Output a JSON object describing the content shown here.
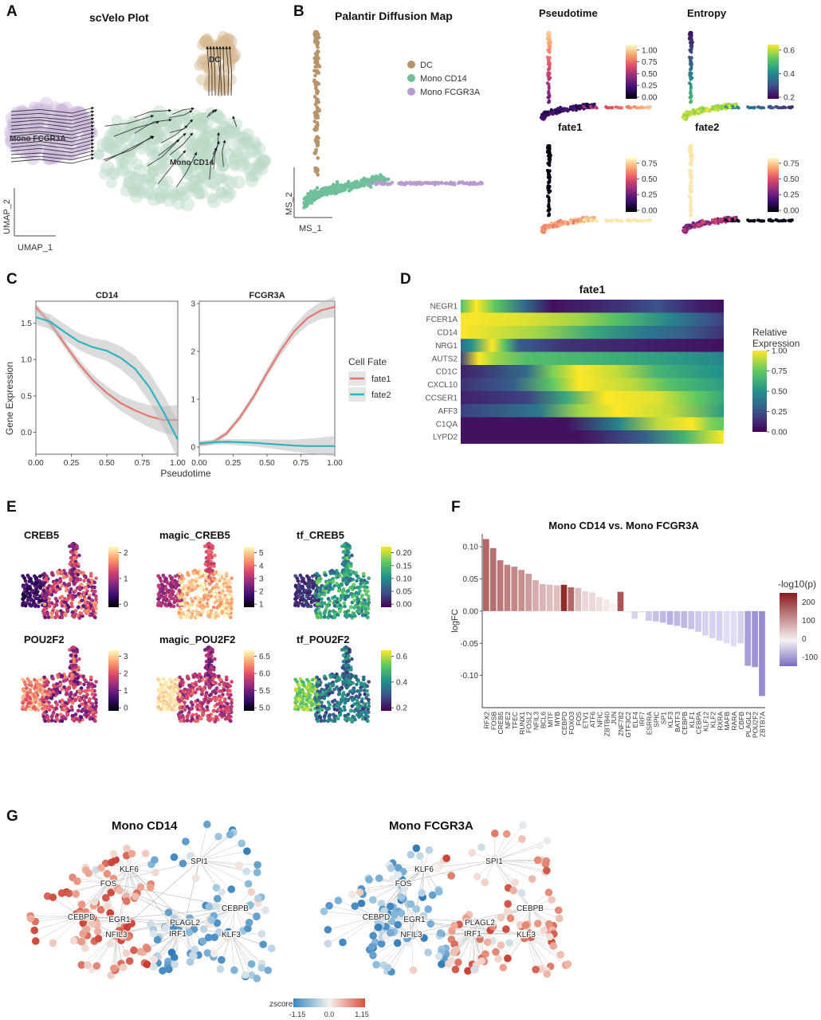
{
  "panels": {
    "A": {
      "letter": "A",
      "title": "scVelo Plot",
      "xlabel": "UMAP_1",
      "ylabel": "UMAP_2",
      "cluster_labels": [
        "DC",
        "Mono FCGR3A",
        "Mono CD14"
      ]
    },
    "B": {
      "letter": "B",
      "title": "Palantir Diffusion Map",
      "xlabel": "MS_1",
      "ylabel": "MS_2",
      "legend": [
        {
          "label": "DC",
          "color": "#b8946a"
        },
        {
          "label": "Mono CD14",
          "color": "#6fbf9a"
        },
        {
          "label": "Mono FCGR3A",
          "color": "#b59ccd"
        }
      ],
      "subplots": [
        {
          "title": "Pseudotime",
          "ticks": [
            "1.00",
            "0.75",
            "0.50",
            "0.25",
            "0.00"
          ],
          "cmap": "magma"
        },
        {
          "title": "Entropy",
          "ticks": [
            "0.6",
            "0.4",
            "0.2"
          ],
          "cmap": "viridis"
        },
        {
          "title": "fate1",
          "ticks": [
            "0.75",
            "0.50",
            "0.25",
            "0.00"
          ],
          "cmap": "magma"
        },
        {
          "title": "fate2",
          "ticks": [
            "0.75",
            "0.50",
            "0.25",
            "0.00"
          ],
          "cmap": "magma"
        }
      ]
    },
    "C": {
      "letter": "C",
      "ylabel": "Gene Expression",
      "xlabel": "Pseudotime",
      "legend_title": "Cell Fate",
      "legend": [
        {
          "label": "fate1",
          "color": "#e8766f"
        },
        {
          "label": "fate2",
          "color": "#2bb5c0"
        }
      ]
    },
    "D": {
      "letter": "D",
      "title": "fate1",
      "legend_title_1": "Relative",
      "legend_title_2": "Expression",
      "ticks": [
        "1.00",
        "0.75",
        "0.50",
        "0.25",
        "0.00"
      ]
    },
    "E": {
      "letter": "E",
      "subplots": [
        {
          "title": "CREB5",
          "ticks": [
            "2",
            "1",
            "0"
          ],
          "cmap": "magma"
        },
        {
          "title": "magic_CREB5",
          "ticks": [
            "5",
            "4",
            "3",
            "2",
            "1"
          ],
          "cmap": "magma"
        },
        {
          "title": "tf_CREB5",
          "ticks": [
            "0.20",
            "0.15",
            "0.10",
            "0.05",
            "0.00"
          ],
          "cmap": "viridis"
        },
        {
          "title": "POU2F2",
          "ticks": [
            "3",
            "2",
            "1",
            "0"
          ],
          "cmap": "magma"
        },
        {
          "title": "magic_POU2F2",
          "ticks": [
            "6.5",
            "6.0",
            "5.5",
            "5.0"
          ],
          "cmap": "magma"
        },
        {
          "title": "tf_POU2F2",
          "ticks": [
            "0.6",
            "0.4",
            "0.2"
          ],
          "cmap": "viridis"
        }
      ]
    },
    "F": {
      "letter": "F",
      "legend_title": "-log10(p)",
      "legend_ticks": [
        "200",
        "100",
        "0",
        "-100"
      ]
    },
    "G": {
      "letter": "G",
      "networks": [
        {
          "title": "Mono CD14",
          "hubs": [
            "KLF6",
            "FOS",
            "SPI1",
            "CEBPD",
            "EGR1",
            "PLAGL2",
            "CEBPB",
            "IRF1",
            "NFIL3",
            "KLF3"
          ]
        },
        {
          "title": "Mono FCGR3A",
          "hubs": [
            "KLF6",
            "FOS",
            "SPI1",
            "CEBPD",
            "EGR1",
            "PLAGL2",
            "CEBPB",
            "IRF1",
            "NFIL3",
            "KLF3"
          ]
        }
      ],
      "zscore_label": "zscore",
      "zscore_ticks": [
        "-1.15",
        "0.0",
        "1.15"
      ]
    }
  },
  "chart_data": [
    {
      "type": "line",
      "title": "CD14",
      "xlabel": "Pseudotime",
      "ylabel": "Gene Expression",
      "xlim": [
        0,
        1
      ],
      "ylim": [
        -0.3,
        1.8
      ],
      "xticks": [
        "0.00",
        "0.25",
        "0.50",
        "0.75",
        "1.00"
      ],
      "yticks": [
        "0.0",
        "0.5",
        "1.0",
        "1.5"
      ],
      "x": [
        0,
        0.1,
        0.2,
        0.3,
        0.4,
        0.5,
        0.6,
        0.7,
        0.8,
        0.9,
        1.0
      ],
      "series": [
        {
          "name": "fate1",
          "values": [
            1.72,
            1.5,
            1.22,
            0.95,
            0.72,
            0.54,
            0.4,
            0.3,
            0.22,
            0.17,
            0.17
          ]
        },
        {
          "name": "fate2",
          "values": [
            1.58,
            1.52,
            1.38,
            1.25,
            1.17,
            1.12,
            1.02,
            0.87,
            0.62,
            0.28,
            -0.1
          ]
        }
      ]
    },
    {
      "type": "line",
      "title": "FCGR3A",
      "xlabel": "Pseudotime",
      "xlim": [
        0,
        1
      ],
      "ylim": [
        -0.15,
        3.05
      ],
      "xticks": [
        "0.00",
        "0.25",
        "0.50",
        "0.75",
        "1.00"
      ],
      "yticks": [
        "0",
        "1",
        "2",
        "3"
      ],
      "x": [
        0,
        0.1,
        0.2,
        0.3,
        0.4,
        0.5,
        0.6,
        0.7,
        0.8,
        0.9,
        1.0
      ],
      "series": [
        {
          "name": "fate1",
          "values": [
            0.05,
            0.1,
            0.28,
            0.62,
            1.05,
            1.55,
            2.02,
            2.42,
            2.7,
            2.86,
            2.93
          ]
        },
        {
          "name": "fate2",
          "values": [
            0.08,
            0.1,
            0.11,
            0.1,
            0.09,
            0.07,
            0.05,
            0.03,
            0.02,
            0.02,
            0.02
          ]
        }
      ]
    },
    {
      "type": "heatmap",
      "title": "fate1",
      "rows": [
        "NEGR1",
        "FCER1A",
        "CD14",
        "NRG1",
        "AUTS2",
        "CD1C",
        "CXCL10",
        "CCSER1",
        "AFF3",
        "C1QA",
        "LYPD2"
      ],
      "profiles": [
        [
          [
            0,
            0.7
          ],
          [
            0.06,
            1
          ],
          [
            0.13,
            0.75
          ],
          [
            0.24,
            0.35
          ],
          [
            0.35,
            0.05
          ],
          [
            0.6,
            0.15
          ],
          [
            0.75,
            0.25
          ],
          [
            0.9,
            0.1
          ],
          [
            1,
            0.05
          ]
        ],
        [
          [
            0,
            1
          ],
          [
            0.25,
            0.95
          ],
          [
            0.45,
            0.85
          ],
          [
            0.6,
            0.7
          ],
          [
            0.8,
            0.45
          ],
          [
            0.95,
            0.25
          ],
          [
            1,
            0.2
          ]
        ],
        [
          [
            0,
            1
          ],
          [
            0.3,
            0.85
          ],
          [
            0.5,
            0.6
          ],
          [
            0.7,
            0.4
          ],
          [
            0.85,
            0.3
          ],
          [
            1,
            0.15
          ]
        ],
        [
          [
            0,
            0.35
          ],
          [
            0.04,
            0.5
          ],
          [
            0.12,
            1
          ],
          [
            0.17,
            0.7
          ],
          [
            0.22,
            0.3
          ],
          [
            0.4,
            0.15
          ],
          [
            0.7,
            0.1
          ],
          [
            1,
            0.05
          ]
        ],
        [
          [
            0,
            0.2
          ],
          [
            0.07,
            1
          ],
          [
            0.13,
            0.85
          ],
          [
            0.25,
            0.7
          ],
          [
            0.5,
            0.65
          ],
          [
            0.8,
            0.55
          ],
          [
            1,
            0.45
          ]
        ],
        [
          [
            0,
            0.1
          ],
          [
            0.25,
            0.35
          ],
          [
            0.35,
            0.8
          ],
          [
            0.45,
            1
          ],
          [
            0.6,
            0.9
          ],
          [
            0.75,
            0.65
          ],
          [
            0.9,
            0.55
          ],
          [
            1,
            0.5
          ]
        ],
        [
          [
            0,
            0.15
          ],
          [
            0.2,
            0.3
          ],
          [
            0.35,
            0.75
          ],
          [
            0.45,
            1
          ],
          [
            0.65,
            0.9
          ],
          [
            0.8,
            0.7
          ],
          [
            1,
            0.55
          ]
        ],
        [
          [
            0,
            0.1
          ],
          [
            0.25,
            0.2
          ],
          [
            0.4,
            0.6
          ],
          [
            0.55,
            1
          ],
          [
            0.75,
            0.95
          ],
          [
            0.9,
            0.75
          ],
          [
            1,
            0.6
          ]
        ],
        [
          [
            0,
            0.2
          ],
          [
            0.3,
            0.4
          ],
          [
            0.45,
            0.85
          ],
          [
            0.6,
            1
          ],
          [
            0.8,
            0.9
          ],
          [
            1,
            0.55
          ]
        ],
        [
          [
            0,
            0.05
          ],
          [
            0.4,
            0.05
          ],
          [
            0.6,
            0.45
          ],
          [
            0.75,
            0.9
          ],
          [
            0.88,
            1
          ],
          [
            0.95,
            0.8
          ],
          [
            1,
            0.75
          ]
        ],
        [
          [
            0,
            0.05
          ],
          [
            0.45,
            0.05
          ],
          [
            0.7,
            0.3
          ],
          [
            0.85,
            0.65
          ],
          [
            0.95,
            0.9
          ],
          [
            1,
            1
          ]
        ]
      ],
      "colorbar_range": [
        0,
        1
      ]
    },
    {
      "type": "bar",
      "title": "Mono CD14 vs. Mono FCGR3A",
      "ylabel": "logFC",
      "ylim": [
        -0.15,
        0.12
      ],
      "yticks": [
        "0.10",
        "0.05",
        "0.00",
        "-0.05",
        "-0.10"
      ],
      "categories": [
        "RFX2",
        "FOSB",
        "CREB5",
        "NFE2",
        "TFEC",
        "RUNX1",
        "FOSL2",
        "NFIL3",
        "BCL6",
        "MITF",
        "MYB",
        "CEBPD",
        "FOXO3",
        "FOS",
        "ETV1",
        "ATF6",
        "NFIC",
        "ZBTB40",
        "JUN",
        "ZNF782",
        "GTF3C2",
        "ELF4",
        "IRF7",
        "ESRRA",
        "SPIC",
        "SP1",
        "KLF3",
        "BATF3",
        "CEBPB",
        "KLF1",
        "CEBPA",
        "KLF12",
        "KLF2",
        "RXRA",
        "MAFB",
        "RARA",
        "CBFB",
        "PLAGL2",
        "POU2F2",
        "ZBTB7A"
      ],
      "values": [
        0.112,
        0.098,
        0.079,
        0.072,
        0.069,
        0.064,
        0.058,
        0.048,
        0.042,
        0.041,
        0.04,
        0.041,
        0.037,
        0.036,
        0.031,
        0.029,
        0.022,
        0.018,
        0.012,
        0.03,
        -0.002,
        -0.012,
        -0.002,
        -0.015,
        -0.016,
        -0.018,
        -0.021,
        -0.023,
        -0.026,
        -0.028,
        -0.032,
        -0.038,
        -0.042,
        -0.046,
        -0.05,
        -0.055,
        -0.05,
        -0.085,
        -0.087,
        -0.132
      ],
      "neglogp": [
        160,
        150,
        140,
        130,
        125,
        115,
        100,
        80,
        70,
        60,
        60,
        230,
        160,
        60,
        30,
        30,
        20,
        10,
        0,
        180,
        10,
        -30,
        -20,
        -40,
        -50,
        -60,
        -70,
        -60,
        -60,
        -50,
        -40,
        -30,
        -30,
        -30,
        -20,
        -20,
        -30,
        -90,
        -100,
        -110
      ],
      "colorbar_range": [
        -150,
        250
      ]
    }
  ]
}
